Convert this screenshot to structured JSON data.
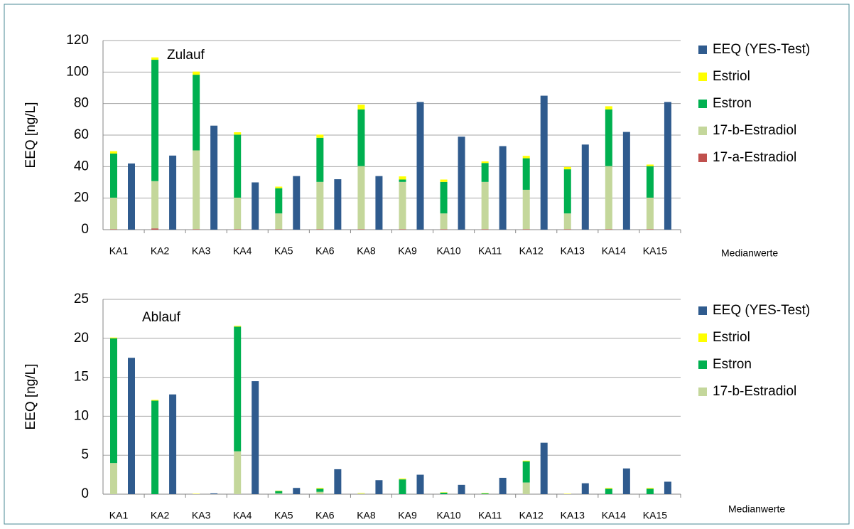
{
  "chart_data": [
    {
      "type": "bar",
      "annotation": "Zulauf",
      "ylabel": "EEQ [ng/L]",
      "footnote": "Medianwerte",
      "categories": [
        "KA1",
        "KA2",
        "KA3",
        "KA4",
        "KA5",
        "KA6",
        "KA8",
        "KA9",
        "KA10",
        "KA11",
        "KA12",
        "KA13",
        "KA14",
        "KA15"
      ],
      "ylim": [
        0,
        120
      ],
      "yticks": [
        0,
        20,
        40,
        60,
        80,
        100,
        120
      ],
      "grid": true,
      "series": [
        {
          "name": "EEQ (YES-Test)",
          "color": "#2f5b8e",
          "stacked": false,
          "values": [
            42,
            47,
            66,
            30,
            34,
            32,
            34,
            81,
            59,
            53,
            85,
            54,
            62,
            81
          ]
        },
        {
          "name": "Estriol",
          "color": "#ffff00",
          "stacked": true,
          "values": [
            1.5,
            1.5,
            2,
            1.5,
            1,
            2,
            3,
            2,
            1.5,
            1,
            1.5,
            1.5,
            2,
            1
          ]
        },
        {
          "name": "Estron",
          "color": "#00b050",
          "stacked": true,
          "values": [
            28,
            77,
            48,
            40,
            16,
            28,
            36,
            1.5,
            20,
            12,
            20,
            28,
            36,
            20
          ]
        },
        {
          "name": "17-b-Estradiol",
          "color": "#c4d79b",
          "stacked": true,
          "values": [
            20,
            30,
            50,
            20,
            10,
            30,
            40,
            30,
            10,
            30,
            25,
            10,
            40,
            20
          ]
        },
        {
          "name": "17-a-Estradiol",
          "color": "#c0504d",
          "stacked": true,
          "values": [
            0.3,
            0.8,
            0.3,
            0.3,
            0.3,
            0.3,
            0.3,
            0.3,
            0.3,
            0.3,
            0.3,
            0.3,
            0.3,
            0.3
          ]
        }
      ]
    },
    {
      "type": "bar",
      "annotation": "Ablauf",
      "ylabel": "EEQ [ng/L]",
      "footnote": "Medianwerte",
      "categories": [
        "KA1",
        "KA2",
        "KA3",
        "KA4",
        "KA5",
        "KA6",
        "KA8",
        "KA9",
        "KA10",
        "KA11",
        "KA12",
        "KA13",
        "KA14",
        "KA15"
      ],
      "ylim": [
        0,
        25
      ],
      "yticks": [
        0,
        5,
        10,
        15,
        20,
        25
      ],
      "grid": true,
      "series": [
        {
          "name": "EEQ (YES-Test)",
          "color": "#2f5b8e",
          "stacked": false,
          "values": [
            17.5,
            12.8,
            0.1,
            14.5,
            0.8,
            3.2,
            1.8,
            2.5,
            1.2,
            2.1,
            6.6,
            1.4,
            3.3,
            1.6
          ]
        },
        {
          "name": "Estriol",
          "color": "#ffff00",
          "stacked": true,
          "values": [
            0.1,
            0.1,
            0.05,
            0.1,
            0.05,
            0.1,
            0.05,
            0.1,
            0.05,
            0.05,
            0.1,
            0.05,
            0.1,
            0.1
          ]
        },
        {
          "name": "Estron",
          "color": "#00b050",
          "stacked": true,
          "values": [
            16,
            12,
            0,
            16,
            0.3,
            0.4,
            0,
            1.9,
            0.2,
            0.1,
            2.7,
            0,
            0.7,
            0.7
          ]
        },
        {
          "name": "17-b-Estradiol",
          "color": "#c4d79b",
          "stacked": true,
          "values": [
            4,
            0,
            0,
            5.5,
            0.1,
            0.3,
            0.1,
            0,
            0,
            0,
            1.5,
            0,
            0,
            0
          ]
        }
      ]
    }
  ]
}
